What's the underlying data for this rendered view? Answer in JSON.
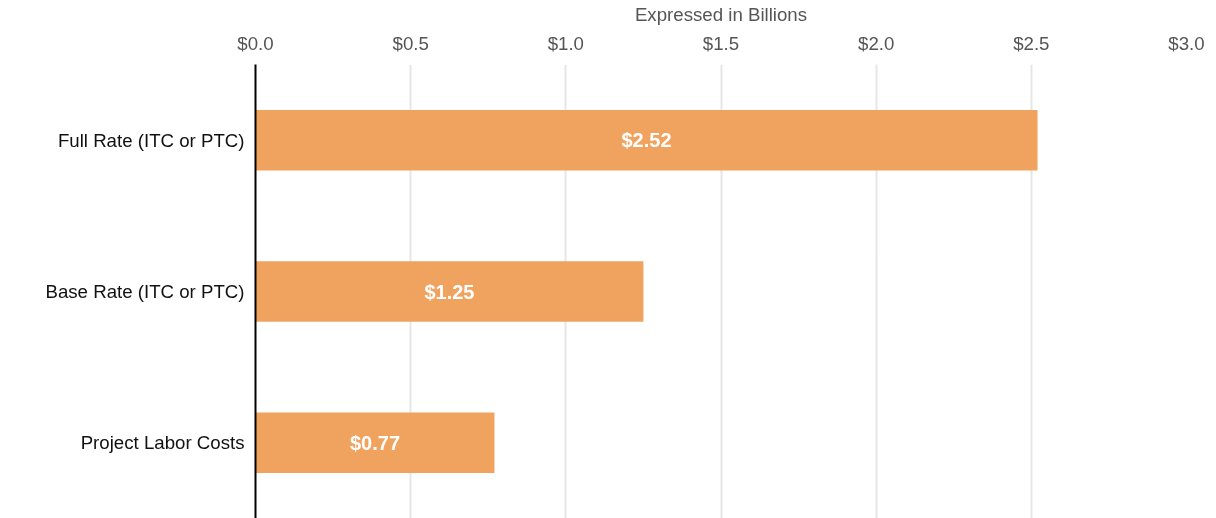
{
  "chart_data": {
    "type": "bar",
    "orientation": "horizontal",
    "xlabel": "Expressed in Billions",
    "categories": [
      "Full Rate (ITC or PTC)",
      "Base Rate (ITC or PTC)",
      "Project Labor Costs"
    ],
    "values": [
      2.52,
      1.25,
      0.77
    ],
    "value_labels": [
      "$2.52",
      "$1.25",
      "$0.77"
    ],
    "color": "#f0a35e",
    "xlim": [
      0,
      3
    ],
    "xticks": [
      {
        "value": 0,
        "label": "$0.0"
      },
      {
        "value": 0.5,
        "label": "$0.5"
      },
      {
        "value": 1,
        "label": "$1.0"
      },
      {
        "value": 1.5,
        "label": "$1.5"
      },
      {
        "value": 2,
        "label": "$2.0"
      },
      {
        "value": 2.5,
        "label": "$2.5"
      },
      {
        "value": 3,
        "label": "$3.0"
      }
    ],
    "grid": "x"
  }
}
